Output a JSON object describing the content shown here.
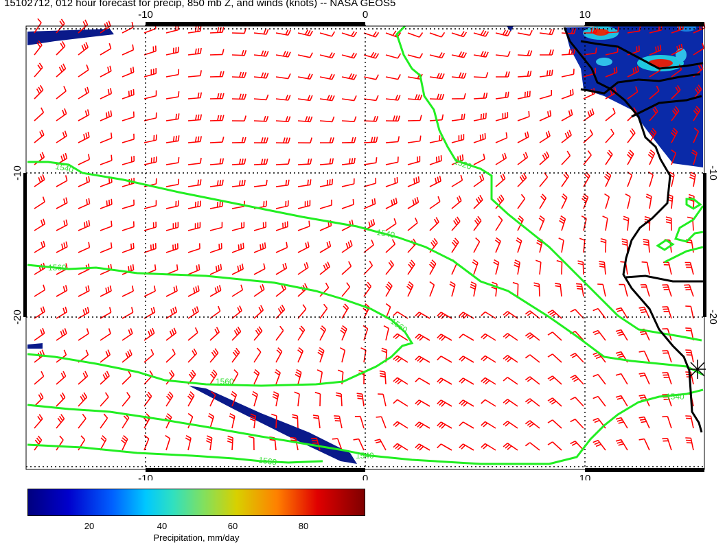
{
  "title": "15102712, 012 hour forecast for precip, 850 mb Z, and winds (knots) -- NASA GEOS5",
  "axes": {
    "x_ticks": [
      "-10",
      "0",
      "10"
    ],
    "y_ticks": [
      "-10",
      "-20"
    ]
  },
  "contour_labels": [
    "1520",
    "1540",
    "1540",
    "1560",
    "1560",
    "1560",
    "1540",
    "1560",
    "1540"
  ],
  "colorbar": {
    "ticks": [
      "20",
      "40",
      "60",
      "80"
    ],
    "label": "Precipitation, mm/day"
  },
  "colors": {
    "wind_barbs": "#ff0000",
    "contours": "#22ee22",
    "coastline": "#000000",
    "precip_low": "#0a1a8a"
  }
}
